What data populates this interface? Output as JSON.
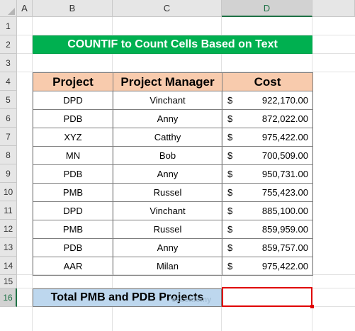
{
  "columns": [
    "A",
    "B",
    "C",
    "D"
  ],
  "selected_column": "D",
  "rows": [
    "1",
    "2",
    "3",
    "4",
    "5",
    "6",
    "7",
    "8",
    "9",
    "10",
    "11",
    "12",
    "13",
    "14",
    "15",
    "16"
  ],
  "selected_row": "16",
  "title": "COUNTIF to Count Cells Based on Text",
  "table": {
    "headers": [
      "Project",
      "Project Manager",
      "Cost"
    ],
    "currency_symbol": "$",
    "rows": [
      {
        "project": "DPD",
        "manager": "Vinchant",
        "cost": "922,170.00"
      },
      {
        "project": "PDB",
        "manager": "Anny",
        "cost": "872,022.00"
      },
      {
        "project": "XYZ",
        "manager": "Catthy",
        "cost": "975,422.00"
      },
      {
        "project": "MN",
        "manager": "Bob",
        "cost": "700,509.00"
      },
      {
        "project": "PDB",
        "manager": "Anny",
        "cost": "950,731.00"
      },
      {
        "project": "PMB",
        "manager": "Russel",
        "cost": "755,423.00"
      },
      {
        "project": "DPD",
        "manager": "Vinchant",
        "cost": "885,100.00"
      },
      {
        "project": "PMB",
        "manager": "Russel",
        "cost": "859,959.00"
      },
      {
        "project": "PDB",
        "manager": "Anny",
        "cost": "859,757.00"
      },
      {
        "project": "AAR",
        "manager": "Milan",
        "cost": "975,422.00"
      }
    ]
  },
  "total_label": "Total PMB and PDB Projects",
  "total_value": "",
  "watermark": "exceldemy",
  "colors": {
    "title_bg": "#00b050",
    "header_bg": "#f8cbad",
    "total_bg": "#bdd7ee",
    "selection": "#e00000"
  }
}
